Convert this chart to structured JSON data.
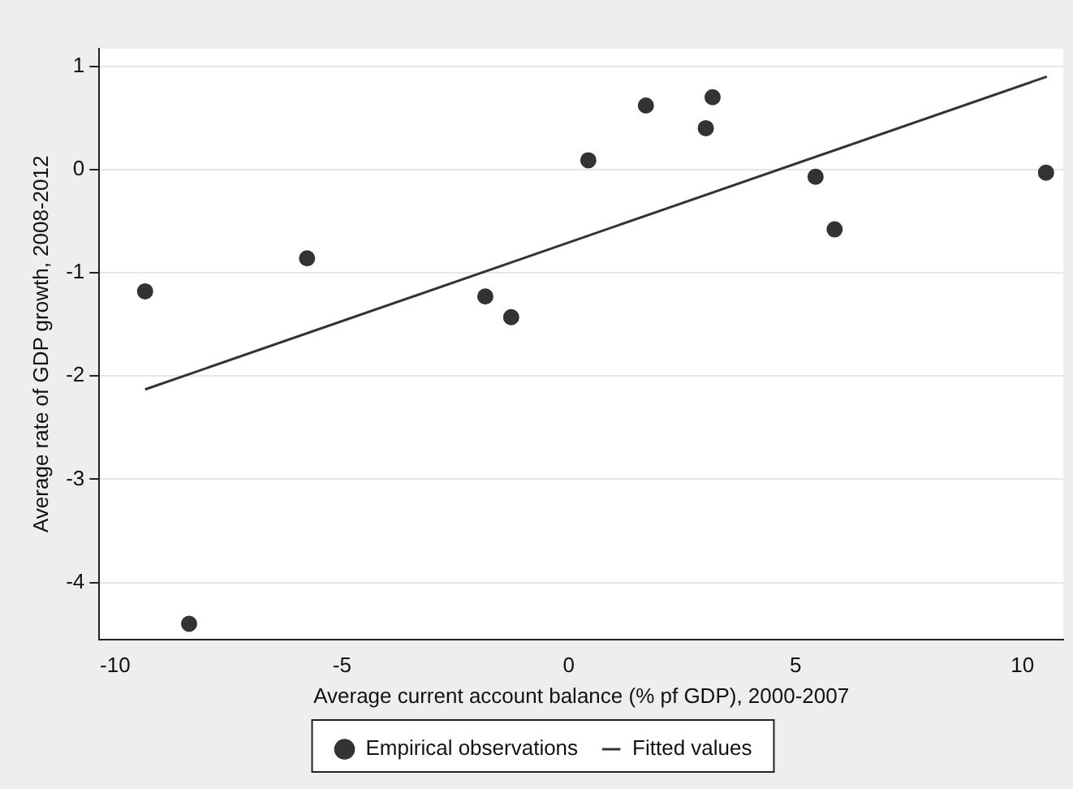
{
  "chart_data": {
    "type": "scatter",
    "xlabel": "Average current account balance (% pf GDP), 2000-2007",
    "ylabel": "Average rate of GDP growth, 2008-2012",
    "xlim": [
      -10.35,
      10.9
    ],
    "ylim": [
      -4.55,
      1.17
    ],
    "xticks": [
      -10,
      -5,
      0,
      5,
      10
    ],
    "yticks": [
      -4,
      -3,
      -2,
      -1,
      0,
      1
    ],
    "grid": "y",
    "legend": "bottom",
    "marker": "circle",
    "series": [
      {
        "name": "Empirical observations",
        "type": "scatter",
        "color": "#333333",
        "x": [
          -9.34,
          -8.37,
          -5.77,
          -1.84,
          -1.27,
          0.43,
          1.7,
          3.02,
          3.17,
          5.44,
          5.86,
          10.52
        ],
        "values": [
          -1.18,
          -4.4,
          -0.86,
          -1.23,
          -1.43,
          0.09,
          0.62,
          0.4,
          0.7,
          -0.07,
          -0.58,
          -0.03
        ]
      },
      {
        "name": "Fitted values",
        "type": "line",
        "color": "#333333",
        "marker": "none",
        "line_style": "solid",
        "x": [
          -9.34,
          10.54
        ],
        "values": [
          -2.13,
          0.9
        ]
      }
    ]
  }
}
